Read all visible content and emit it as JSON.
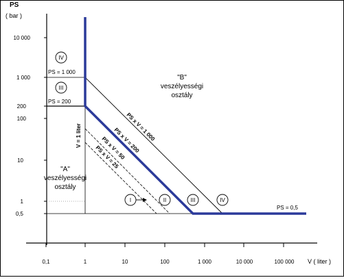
{
  "axes": {
    "y_title": "PS",
    "y_unit": "( bar )",
    "x_title": "V ( liter )",
    "y_ticks": [
      "10 000",
      "1 000",
      "200",
      "100",
      "10",
      "1",
      "0,5"
    ],
    "x_ticks": [
      "0,1",
      "1",
      "10",
      "100",
      "1 000",
      "10 000",
      "100 000"
    ]
  },
  "regions": {
    "a_label_1": "\"A\"",
    "a_label_2": "veszélyességi",
    "a_label_3": "osztály",
    "b_label_1": "\"B\"",
    "b_label_2": "veszélyességi",
    "b_label_3": "osztály"
  },
  "lines": {
    "ps_1000": "PS = 1 000",
    "ps_200": "PS = 200",
    "ps_05": "PS = 0,5",
    "v_1": "V = 1 liter",
    "psv_1000": "PS x V = 1 000",
    "psv_200": "PS x V = 200",
    "psv_50": "PS x V = 50",
    "psv_25": "PS x V = 25"
  },
  "categories": {
    "I": "I",
    "II": "II",
    "III": "III",
    "IV": "IV"
  },
  "colors": {
    "boundary": "#2b3a9a",
    "lines": "#000000",
    "guide": "#555555"
  }
}
